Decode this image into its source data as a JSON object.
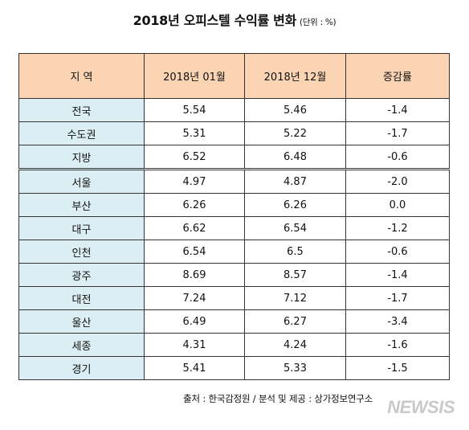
{
  "title": {
    "main": "2018년 오피스텔 수익률 변화",
    "unit": "(단위 : %)"
  },
  "table": {
    "headers": [
      "지 역",
      "2018년 01월",
      "2018년 12월",
      "증감률"
    ],
    "rows": [
      [
        "전국",
        "5.54",
        "5.46",
        "-1.4"
      ],
      [
        "수도권",
        "5.31",
        "5.22",
        "-1.7"
      ],
      [
        "지방",
        "6.52",
        "6.48",
        "-0.6"
      ],
      [
        "서울",
        "4.97",
        "4.87",
        "-2.0"
      ],
      [
        "부산",
        "6.26",
        "6.26",
        "0.0"
      ],
      [
        "대구",
        "6.62",
        "6.54",
        "-1.2"
      ],
      [
        "인천",
        "6.54",
        "6.5",
        "-0.6"
      ],
      [
        "광주",
        "8.69",
        "8.57",
        "-1.4"
      ],
      [
        "대전",
        "7.24",
        "7.12",
        "-1.7"
      ],
      [
        "울산",
        "6.49",
        "6.27",
        "-3.4"
      ],
      [
        "세종",
        "4.31",
        "4.24",
        "-1.6"
      ],
      [
        "경기",
        "5.41",
        "5.33",
        "-1.5"
      ]
    ]
  },
  "source": "출처 : 한국감정원 / 분석 및 제공 : 상가정보연구소",
  "watermark": "NEWSIS",
  "colors": {
    "header_bg": "#fbd4b4",
    "region_bg": "#daeef3"
  }
}
